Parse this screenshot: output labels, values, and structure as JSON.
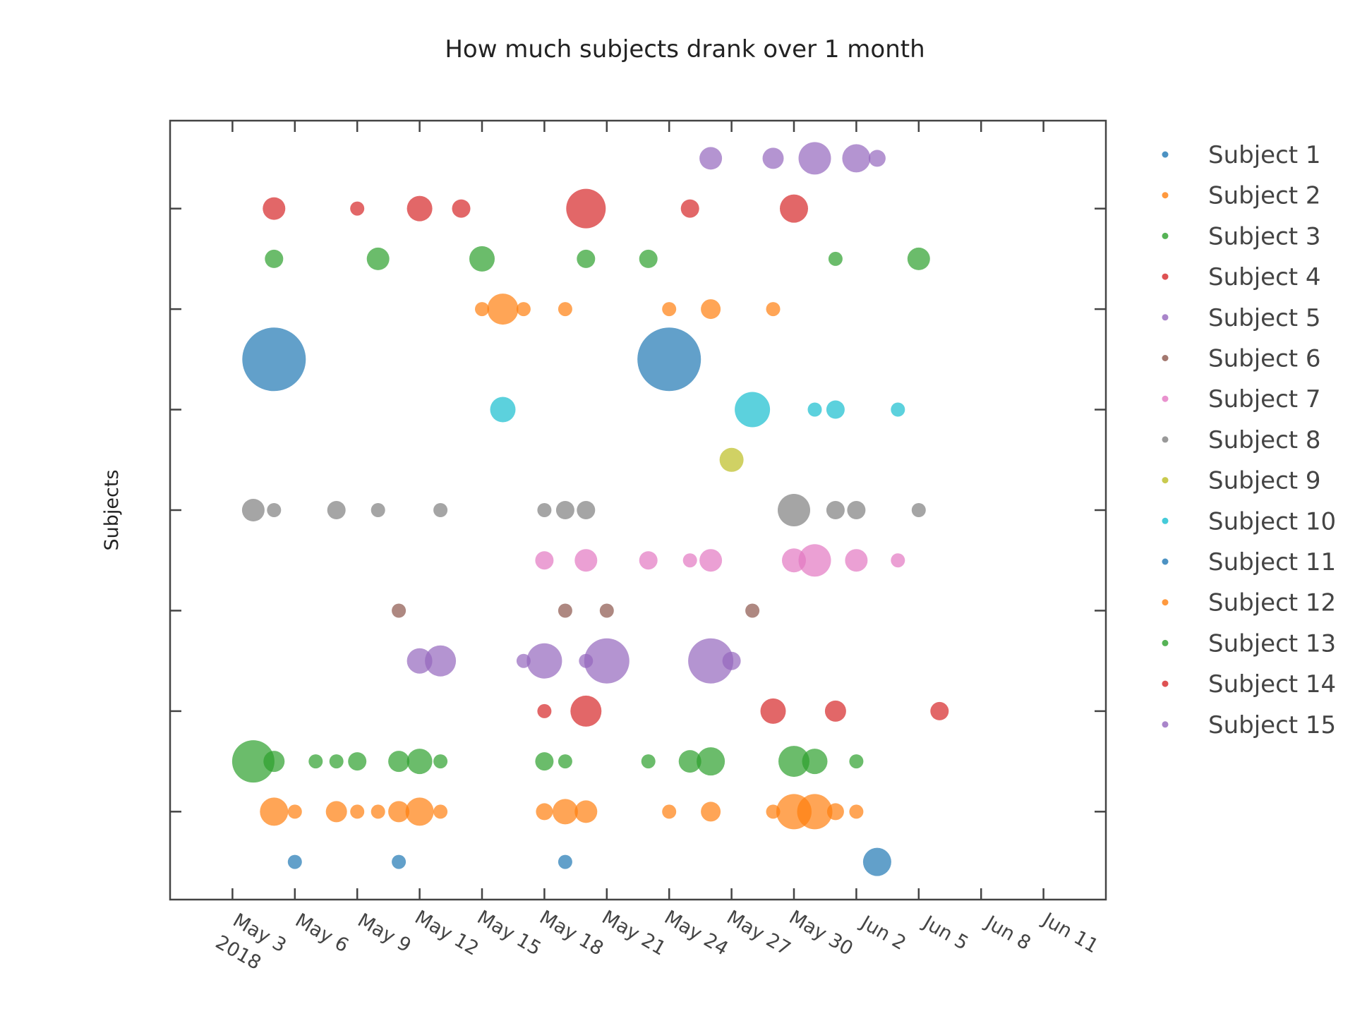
{
  "chart_data": {
    "type": "scatter",
    "title": "How much subjects drank over 1 month",
    "xlabel": "",
    "ylabel": "Subjects",
    "x_axis": {
      "type": "date",
      "range": [
        "2018-04-30",
        "2018-06-14"
      ],
      "ticks": [
        "May 3",
        "May 6",
        "May 9",
        "May 12",
        "May 15",
        "May 18",
        "May 21",
        "May 24",
        "May 27",
        "May 30",
        "Jun 2",
        "Jun 5",
        "Jun 8",
        "Jun 11"
      ],
      "tick_dates": [
        "2018-05-03",
        "2018-05-06",
        "2018-05-09",
        "2018-05-12",
        "2018-05-15",
        "2018-05-18",
        "2018-05-21",
        "2018-05-24",
        "2018-05-27",
        "2018-05-30",
        "2018-06-02",
        "2018-06-05",
        "2018-06-08",
        "2018-06-11"
      ],
      "year_label": "2018"
    },
    "y_axis": {
      "range": [
        0.25,
        15.75
      ],
      "tick_labels_shown": false
    },
    "grid": false,
    "legend_position": "right",
    "colors": [
      "#1f77b4",
      "#ff7f0e",
      "#2ca02c",
      "#d62728",
      "#9467bd",
      "#8c564b",
      "#e377c2",
      "#7f7f7f",
      "#bcbd22",
      "#17becf",
      "#1f77b4",
      "#ff7f0e",
      "#2ca02c",
      "#d62728",
      "#9467bd"
    ],
    "series": [
      {
        "name": "Subject 1",
        "points": [
          {
            "date": "2018-05-06",
            "size": 1
          },
          {
            "date": "2018-05-11",
            "size": 1
          },
          {
            "date": "2018-05-19",
            "size": 1
          },
          {
            "date": "2018-06-03",
            "size": 2
          }
        ]
      },
      {
        "name": "Subject 2",
        "points": [
          {
            "date": "2018-05-05",
            "size": 2
          },
          {
            "date": "2018-05-06",
            "size": 1
          },
          {
            "date": "2018-05-08",
            "size": 1.5
          },
          {
            "date": "2018-05-09",
            "size": 1
          },
          {
            "date": "2018-05-10",
            "size": 1
          },
          {
            "date": "2018-05-11",
            "size": 1.5
          },
          {
            "date": "2018-05-12",
            "size": 2
          },
          {
            "date": "2018-05-13",
            "size": 1
          },
          {
            "date": "2018-05-18",
            "size": 1.2
          },
          {
            "date": "2018-05-19",
            "size": 1.8
          },
          {
            "date": "2018-05-20",
            "size": 1.6
          },
          {
            "date": "2018-05-24",
            "size": 1
          },
          {
            "date": "2018-05-26",
            "size": 1.4
          },
          {
            "date": "2018-05-29",
            "size": 1
          },
          {
            "date": "2018-05-30",
            "size": 2.5
          },
          {
            "date": "2018-05-31",
            "size": 2.5
          },
          {
            "date": "2018-06-01",
            "size": 1.2
          },
          {
            "date": "2018-06-02",
            "size": 1
          }
        ]
      },
      {
        "name": "Subject 3",
        "points": [
          {
            "date": "2018-05-04",
            "size": 3
          },
          {
            "date": "2018-05-05",
            "size": 1.5
          },
          {
            "date": "2018-05-07",
            "size": 1
          },
          {
            "date": "2018-05-08",
            "size": 1
          },
          {
            "date": "2018-05-09",
            "size": 1.3
          },
          {
            "date": "2018-05-11",
            "size": 1.5
          },
          {
            "date": "2018-05-12",
            "size": 1.8
          },
          {
            "date": "2018-05-13",
            "size": 1
          },
          {
            "date": "2018-05-18",
            "size": 1.3
          },
          {
            "date": "2018-05-19",
            "size": 1
          },
          {
            "date": "2018-05-23",
            "size": 1
          },
          {
            "date": "2018-05-25",
            "size": 1.6
          },
          {
            "date": "2018-05-26",
            "size": 2
          },
          {
            "date": "2018-05-30",
            "size": 2.2
          },
          {
            "date": "2018-05-31",
            "size": 1.8
          },
          {
            "date": "2018-06-02",
            "size": 1
          }
        ]
      },
      {
        "name": "Subject 4",
        "points": [
          {
            "date": "2018-05-18",
            "size": 1
          },
          {
            "date": "2018-05-20",
            "size": 2.2
          },
          {
            "date": "2018-05-29",
            "size": 1.8
          },
          {
            "date": "2018-06-01",
            "size": 1.5
          },
          {
            "date": "2018-06-06",
            "size": 1.3
          }
        ]
      },
      {
        "name": "Subject 5",
        "points": [
          {
            "date": "2018-05-12",
            "size": 1.8
          },
          {
            "date": "2018-05-13",
            "size": 2.2
          },
          {
            "date": "2018-05-17",
            "size": 1
          },
          {
            "date": "2018-05-18",
            "size": 2.5
          },
          {
            "date": "2018-05-20",
            "size": 1
          },
          {
            "date": "2018-05-21",
            "size": 3.2
          },
          {
            "date": "2018-05-26",
            "size": 3.2
          },
          {
            "date": "2018-05-27",
            "size": 1.3
          }
        ]
      },
      {
        "name": "Subject 6",
        "points": [
          {
            "date": "2018-05-11",
            "size": 1
          },
          {
            "date": "2018-05-19",
            "size": 1
          },
          {
            "date": "2018-05-21",
            "size": 1
          },
          {
            "date": "2018-05-28",
            "size": 1
          }
        ]
      },
      {
        "name": "Subject 7",
        "points": [
          {
            "date": "2018-05-18",
            "size": 1.3
          },
          {
            "date": "2018-05-20",
            "size": 1.6
          },
          {
            "date": "2018-05-23",
            "size": 1.3
          },
          {
            "date": "2018-05-25",
            "size": 1
          },
          {
            "date": "2018-05-26",
            "size": 1.6
          },
          {
            "date": "2018-05-30",
            "size": 1.7
          },
          {
            "date": "2018-05-31",
            "size": 2.3
          },
          {
            "date": "2018-06-02",
            "size": 1.6
          },
          {
            "date": "2018-06-04",
            "size": 1
          }
        ]
      },
      {
        "name": "Subject 8",
        "points": [
          {
            "date": "2018-05-04",
            "size": 1.6
          },
          {
            "date": "2018-05-05",
            "size": 1
          },
          {
            "date": "2018-05-08",
            "size": 1.3
          },
          {
            "date": "2018-05-10",
            "size": 1
          },
          {
            "date": "2018-05-13",
            "size": 1
          },
          {
            "date": "2018-05-18",
            "size": 1
          },
          {
            "date": "2018-05-19",
            "size": 1.3
          },
          {
            "date": "2018-05-20",
            "size": 1.3
          },
          {
            "date": "2018-05-30",
            "size": 2.3
          },
          {
            "date": "2018-06-01",
            "size": 1.3
          },
          {
            "date": "2018-06-02",
            "size": 1.3
          },
          {
            "date": "2018-06-05",
            "size": 1
          }
        ]
      },
      {
        "name": "Subject 9",
        "points": [
          {
            "date": "2018-05-27",
            "size": 1.7
          }
        ]
      },
      {
        "name": "Subject 10",
        "points": [
          {
            "date": "2018-05-16",
            "size": 1.8
          },
          {
            "date": "2018-05-28",
            "size": 2.5
          },
          {
            "date": "2018-05-31",
            "size": 1
          },
          {
            "date": "2018-06-01",
            "size": 1.3
          },
          {
            "date": "2018-06-04",
            "size": 1
          }
        ]
      },
      {
        "name": "Subject 11",
        "points": [
          {
            "date": "2018-05-05",
            "size": 4.5
          },
          {
            "date": "2018-05-24",
            "size": 4.5
          }
        ]
      },
      {
        "name": "Subject 12",
        "points": [
          {
            "date": "2018-05-15",
            "size": 1
          },
          {
            "date": "2018-05-16",
            "size": 2.2
          },
          {
            "date": "2018-05-17",
            "size": 1
          },
          {
            "date": "2018-05-19",
            "size": 1
          },
          {
            "date": "2018-05-24",
            "size": 1
          },
          {
            "date": "2018-05-26",
            "size": 1.4
          },
          {
            "date": "2018-05-29",
            "size": 1
          }
        ]
      },
      {
        "name": "Subject 13",
        "points": [
          {
            "date": "2018-05-05",
            "size": 1.3
          },
          {
            "date": "2018-05-10",
            "size": 1.6
          },
          {
            "date": "2018-05-15",
            "size": 1.8
          },
          {
            "date": "2018-05-20",
            "size": 1.3
          },
          {
            "date": "2018-05-23",
            "size": 1.3
          },
          {
            "date": "2018-06-01",
            "size": 1
          },
          {
            "date": "2018-06-05",
            "size": 1.6
          }
        ]
      },
      {
        "name": "Subject 14",
        "points": [
          {
            "date": "2018-05-05",
            "size": 1.6
          },
          {
            "date": "2018-05-09",
            "size": 1
          },
          {
            "date": "2018-05-12",
            "size": 1.8
          },
          {
            "date": "2018-05-14",
            "size": 1.3
          },
          {
            "date": "2018-05-20",
            "size": 2.8
          },
          {
            "date": "2018-05-25",
            "size": 1.3
          },
          {
            "date": "2018-05-30",
            "size": 2
          }
        ]
      },
      {
        "name": "Subject 15",
        "points": [
          {
            "date": "2018-05-26",
            "size": 1.6
          },
          {
            "date": "2018-05-29",
            "size": 1.5
          },
          {
            "date": "2018-05-31",
            "size": 2.3
          },
          {
            "date": "2018-06-02",
            "size": 2
          },
          {
            "date": "2018-06-03",
            "size": 1.2
          }
        ]
      }
    ]
  }
}
